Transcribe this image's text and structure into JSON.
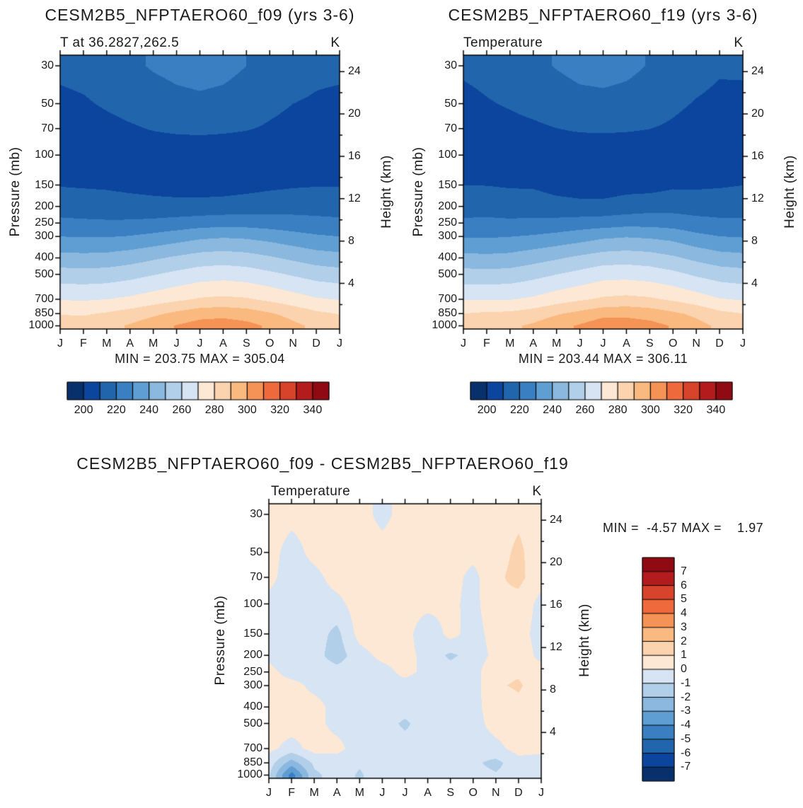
{
  "page": {
    "background": "#ffffff"
  },
  "axes": {
    "months": [
      "J",
      "F",
      "M",
      "A",
      "M",
      "J",
      "J",
      "A",
      "S",
      "O",
      "N",
      "D",
      "J"
    ],
    "pressure_levels_mb": [
      30,
      50,
      70,
      100,
      150,
      200,
      250,
      300,
      400,
      500,
      700,
      850,
      1000
    ],
    "pressure_axis_label": "Pressure (mb)",
    "height_axis_label": "Height (km)",
    "height_ticks_km": [
      24,
      20,
      16,
      12,
      8,
      4
    ],
    "height_minor_ticks_km": [
      22,
      18,
      14,
      10,
      6,
      2
    ]
  },
  "colormap": {
    "colors": [
      "#08306b",
      "#0c459e",
      "#2166ac",
      "#3a7fc2",
      "#5f9ed2",
      "#8ab8de",
      "#b2cfe9",
      "#d6e4f4",
      "#fce8d4",
      "#fbd3ae",
      "#f9b97f",
      "#f59356",
      "#ee6a3d",
      "#d8432b",
      "#b31b1d",
      "#8f0a12"
    ],
    "temp_edges_start": 190,
    "temp_edges_step": 10,
    "temp_colorbar_ticks": [
      200,
      220,
      240,
      260,
      280,
      300,
      320,
      340
    ],
    "diff_edges_start": -8,
    "diff_edges_step": 1,
    "diff_colorbar_ticks": [
      7,
      6,
      5,
      4,
      3,
      2,
      1,
      0,
      -1,
      -2,
      -3,
      -4,
      -5,
      -6,
      -7
    ]
  },
  "chart_data": [
    {
      "type": "heatmap",
      "subtype": "filled_contour_month_vs_pressure",
      "title": "CESM2B5_NFPTAERO60_f09 (yrs 3-6)",
      "subtitle": "T at 36.2827,262.5",
      "units": "K",
      "x_categories": [
        "J",
        "F",
        "M",
        "A",
        "M",
        "J",
        "J",
        "A",
        "S",
        "O",
        "N",
        "D",
        "J"
      ],
      "y_levels_mb": [
        30,
        50,
        70,
        100,
        150,
        200,
        250,
        300,
        400,
        500,
        700,
        850,
        1000
      ],
      "right_axis_height_km": [
        24,
        20,
        16,
        12,
        8,
        4
      ],
      "contour_start": 190,
      "contour_interval": 10,
      "colorbar_ticks": [
        200,
        220,
        240,
        260,
        280,
        300,
        320,
        340
      ],
      "colorbar_position": "bottom",
      "stats": {
        "min": 203.75,
        "max": 305.04
      },
      "stats_text": "MIN = 203.75 MAX = 305.04",
      "values": [
        [
          212,
          213,
          215,
          218,
          221,
          223,
          224,
          223,
          220,
          217,
          214,
          212,
          212
        ],
        [
          208,
          209,
          211,
          213,
          215,
          217,
          218,
          217,
          215,
          212,
          210,
          209,
          208
        ],
        [
          206,
          206.5,
          207.5,
          209,
          210.5,
          211.5,
          212,
          211.5,
          210.5,
          209,
          207.5,
          206.5,
          206
        ],
        [
          205,
          205,
          205,
          205,
          204.8,
          204.4,
          204,
          203.8,
          204.2,
          204.8,
          205,
          205,
          205
        ],
        [
          209.5,
          209,
          208.5,
          207.5,
          206.8,
          206.2,
          205.8,
          205.9,
          206.8,
          208,
          209,
          209.5,
          209.5
        ],
        [
          216,
          215.5,
          215,
          214,
          213.2,
          212.8,
          213,
          213.6,
          214.6,
          215.6,
          216,
          216,
          216
        ],
        [
          222,
          221.5,
          221.2,
          221.5,
          222.5,
          224,
          225.5,
          226.3,
          226,
          225,
          224,
          223,
          222
        ],
        [
          230,
          229.5,
          229.5,
          230.5,
          232.5,
          235,
          237.8,
          239,
          238.2,
          236.2,
          233.5,
          231.2,
          230
        ],
        [
          243.5,
          243,
          243.5,
          245.5,
          248.5,
          251.5,
          254.2,
          255.2,
          254,
          251.2,
          248,
          245,
          243.5
        ],
        [
          254.5,
          254,
          254.5,
          256.5,
          259.5,
          262.5,
          265.2,
          266.2,
          265,
          262.2,
          259,
          256,
          254.5
        ],
        [
          269.5,
          269,
          270,
          272,
          275,
          278,
          281,
          282,
          281,
          278,
          274.5,
          271,
          269.5
        ],
        [
          279.5,
          279,
          281,
          284,
          288,
          292.2,
          296,
          297,
          295,
          291,
          286.5,
          282,
          279.5
        ],
        [
          285,
          284.5,
          287,
          291,
          296,
          300.5,
          304.2,
          305,
          303,
          298.5,
          292.5,
          287.5,
          285
        ]
      ]
    },
    {
      "type": "heatmap",
      "subtype": "filled_contour_month_vs_pressure",
      "title": "CESM2B5_NFPTAERO60_f19 (yrs 3-6)",
      "subtitle": "Temperature",
      "units": "K",
      "x_categories": [
        "J",
        "F",
        "M",
        "A",
        "M",
        "J",
        "J",
        "A",
        "S",
        "O",
        "N",
        "D",
        "J"
      ],
      "y_levels_mb": [
        30,
        50,
        70,
        100,
        150,
        200,
        250,
        300,
        400,
        500,
        700,
        850,
        1000
      ],
      "right_axis_height_km": [
        24,
        20,
        16,
        12,
        8,
        4
      ],
      "contour_start": 190,
      "contour_interval": 10,
      "colorbar_ticks": [
        200,
        220,
        240,
        260,
        280,
        300,
        320,
        340
      ],
      "colorbar_position": "bottom",
      "stats": {
        "min": 203.44,
        "max": 306.11
      },
      "stats_text": "MIN = 203.44 MAX = 306.11",
      "values": [
        [
          211.5,
          212.7,
          214.6,
          217.5,
          220.6,
          223.3,
          223.6,
          222.5,
          219.4,
          216.6,
          213.5,
          211.2,
          211.5
        ],
        [
          207.6,
          209.4,
          210.7,
          212.4,
          214.5,
          216.6,
          217.5,
          216.4,
          214.5,
          211.7,
          209.4,
          207.8,
          207.6
        ],
        [
          205.7,
          207,
          207.8,
          208.6,
          209.9,
          211,
          211.4,
          211,
          210.1,
          208.7,
          206.7,
          205.2,
          205.7
        ],
        [
          205.3,
          205.6,
          205.4,
          205.3,
          204.3,
          204,
          203.5,
          203.4,
          203.9,
          205.2,
          204.1,
          204.4,
          205.3
        ],
        [
          209.9,
          209.8,
          209,
          208.8,
          206.4,
          205.6,
          205.3,
          206.8,
          206.4,
          208.5,
          208.5,
          209.1,
          209.9
        ],
        [
          216.3,
          216.4,
          215.6,
          215.5,
          213.6,
          212.5,
          212.6,
          214,
          215.8,
          216.2,
          215.7,
          215.4,
          216.3
        ],
        [
          221.6,
          222,
          221.6,
          222.1,
          223,
          224.4,
          225.2,
          226.6,
          226.5,
          225.4,
          223.2,
          222.1,
          221.6
        ],
        [
          229.4,
          229.1,
          229.8,
          231,
          232.9,
          235.3,
          238.2,
          239.4,
          238.5,
          236.7,
          232.6,
          230.1,
          229.4
        ],
        [
          243,
          242.4,
          243.1,
          245.9,
          248.8,
          251.9,
          254.7,
          255.5,
          254.4,
          251.5,
          247.5,
          244.2,
          243
        ],
        [
          254.1,
          253.5,
          254.2,
          256.8,
          259.9,
          263,
          266.4,
          266.6,
          265.3,
          262.6,
          258.6,
          255.5,
          254.1
        ],
        [
          269.2,
          269.4,
          269.6,
          271.7,
          275.5,
          278.6,
          281.5,
          282.6,
          281.4,
          278.5,
          274.8,
          270.6,
          269.2
        ],
        [
          280,
          281.5,
          281.8,
          284.5,
          288.9,
          292.8,
          296.8,
          297.5,
          295.6,
          291.8,
          287.8,
          282.4,
          280
        ],
        [
          285.8,
          289,
          288.2,
          291.6,
          297.1,
          301,
          306.1,
          305.2,
          303.5,
          299.1,
          293.4,
          288,
          285.8
        ]
      ]
    },
    {
      "type": "heatmap",
      "subtype": "filled_contour_month_vs_pressure_difference",
      "title": "CESM2B5_NFPTAERO60_f09 - CESM2B5_NFPTAERO60_f19",
      "subtitle": "Temperature",
      "units": "K",
      "x_categories": [
        "J",
        "F",
        "M",
        "A",
        "M",
        "J",
        "J",
        "A",
        "S",
        "O",
        "N",
        "D",
        "J"
      ],
      "y_levels_mb": [
        30,
        50,
        70,
        100,
        150,
        200,
        250,
        300,
        400,
        500,
        700,
        850,
        1000
      ],
      "right_axis_height_km": [
        24,
        20,
        16,
        12,
        8,
        4
      ],
      "contour_start": -8,
      "contour_interval": 1,
      "colorbar_ticks": [
        7,
        6,
        5,
        4,
        3,
        2,
        1,
        0,
        -1,
        -2,
        -3,
        -4,
        -5,
        -6,
        -7
      ],
      "colorbar_position": "right",
      "stats": {
        "min": -4.57,
        "max": 1.97
      },
      "stats_text": "MIN =  -4.57 MAX =    1.97",
      "values": [
        [
          0.5,
          0.3,
          0.4,
          0.5,
          0.4,
          -0.3,
          0.4,
          0.5,
          0.6,
          0.4,
          0.5,
          0.8,
          0.5
        ],
        [
          0.4,
          -0.4,
          0.3,
          0.6,
          0.5,
          0.4,
          0.5,
          0.6,
          0.5,
          0.3,
          0.6,
          1.2,
          0.4
        ],
        [
          0.3,
          -0.5,
          -0.3,
          0.4,
          0.6,
          0.5,
          0.6,
          0.5,
          0.4,
          -0.3,
          0.8,
          1.3,
          0.3
        ],
        [
          -0.3,
          -0.6,
          -0.4,
          -0.3,
          0.5,
          0.4,
          0.5,
          0.4,
          0.3,
          -0.4,
          0.9,
          0.6,
          -0.3
        ],
        [
          -0.4,
          -0.8,
          -0.5,
          -1.3,
          0.4,
          0.6,
          0.5,
          -0.9,
          0.4,
          -0.5,
          0.5,
          0.4,
          -0.4
        ],
        [
          -0.3,
          -0.9,
          -0.6,
          -1.5,
          -0.4,
          0.3,
          0.4,
          -0.4,
          -1.2,
          -0.6,
          0.3,
          0.6,
          -0.3
        ],
        [
          0.4,
          -0.5,
          -0.4,
          -0.6,
          -0.5,
          -0.4,
          0.3,
          -0.3,
          -0.5,
          -0.4,
          0.8,
          0.9,
          0.4
        ],
        [
          0.6,
          0.4,
          -0.3,
          -0.5,
          -0.4,
          -0.3,
          -0.4,
          -0.4,
          -0.3,
          -0.5,
          0.9,
          1.1,
          0.6
        ],
        [
          0.5,
          0.6,
          0.4,
          -0.4,
          -0.3,
          -0.4,
          -0.5,
          -0.3,
          -0.4,
          -0.3,
          0.5,
          0.8,
          0.5
        ],
        [
          0.4,
          0.5,
          0.3,
          -0.3,
          -0.4,
          -0.5,
          -1.2,
          -0.4,
          -0.3,
          -0.4,
          0.4,
          0.5,
          0.4
        ],
        [
          0.3,
          -0.4,
          0.4,
          0.3,
          -0.5,
          -0.6,
          -0.5,
          -0.6,
          -0.4,
          -0.5,
          -0.3,
          0.4,
          0.3
        ],
        [
          -0.5,
          -2.5,
          -0.8,
          -0.5,
          -0.9,
          -0.6,
          -0.8,
          -0.5,
          -0.6,
          -0.8,
          -1.3,
          -0.4,
          -0.5
        ],
        [
          -0.8,
          -4.5,
          -1.2,
          -0.6,
          -1.1,
          -0.5,
          -0.6,
          -0.4,
          -0.5,
          -0.6,
          -0.9,
          -0.5,
          -0.8
        ]
      ]
    }
  ]
}
